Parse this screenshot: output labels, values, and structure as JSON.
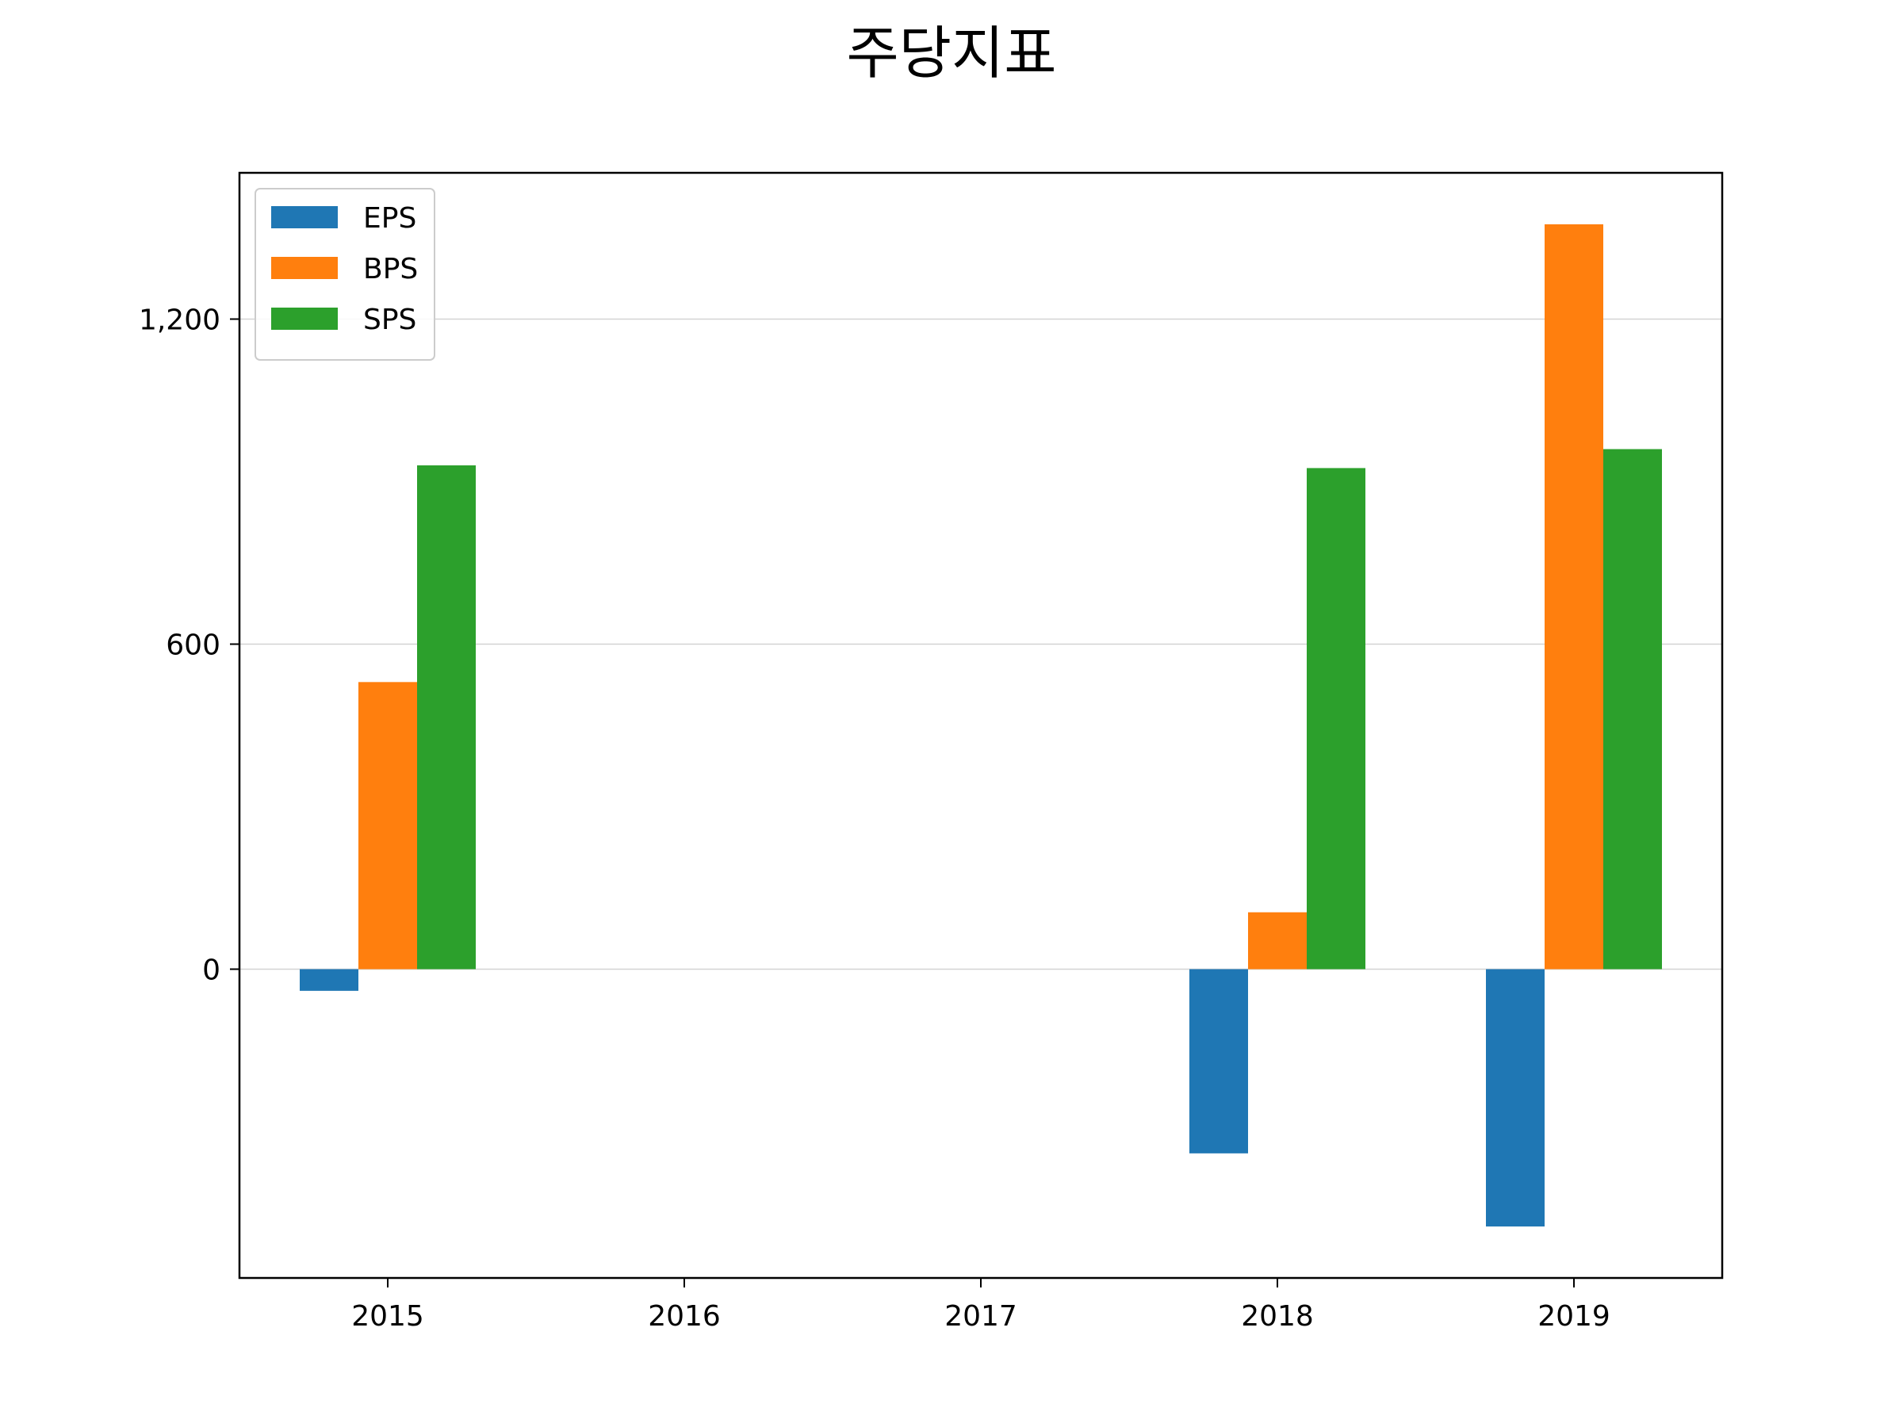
{
  "chart_data": {
    "type": "bar",
    "title": "주당지표",
    "xlabel": "",
    "ylabel": "",
    "categories": [
      "2015",
      "2016",
      "2017",
      "2018",
      "2019"
    ],
    "series": [
      {
        "name": "EPS",
        "color": "#1f77b4",
        "values": [
          -40,
          null,
          null,
          -340,
          -475
        ]
      },
      {
        "name": "BPS",
        "color": "#ff7f0e",
        "values": [
          530,
          null,
          null,
          105,
          1375
        ]
      },
      {
        "name": "SPS",
        "color": "#2ca02c",
        "values": [
          930,
          null,
          null,
          925,
          960
        ]
      }
    ],
    "yticks": [
      0,
      600,
      1200
    ],
    "ytick_labels": [
      "0",
      "600",
      "1,200"
    ],
    "ylim": [
      -570,
      1470
    ],
    "grid": "horizontal",
    "legend_position": "top-left"
  }
}
